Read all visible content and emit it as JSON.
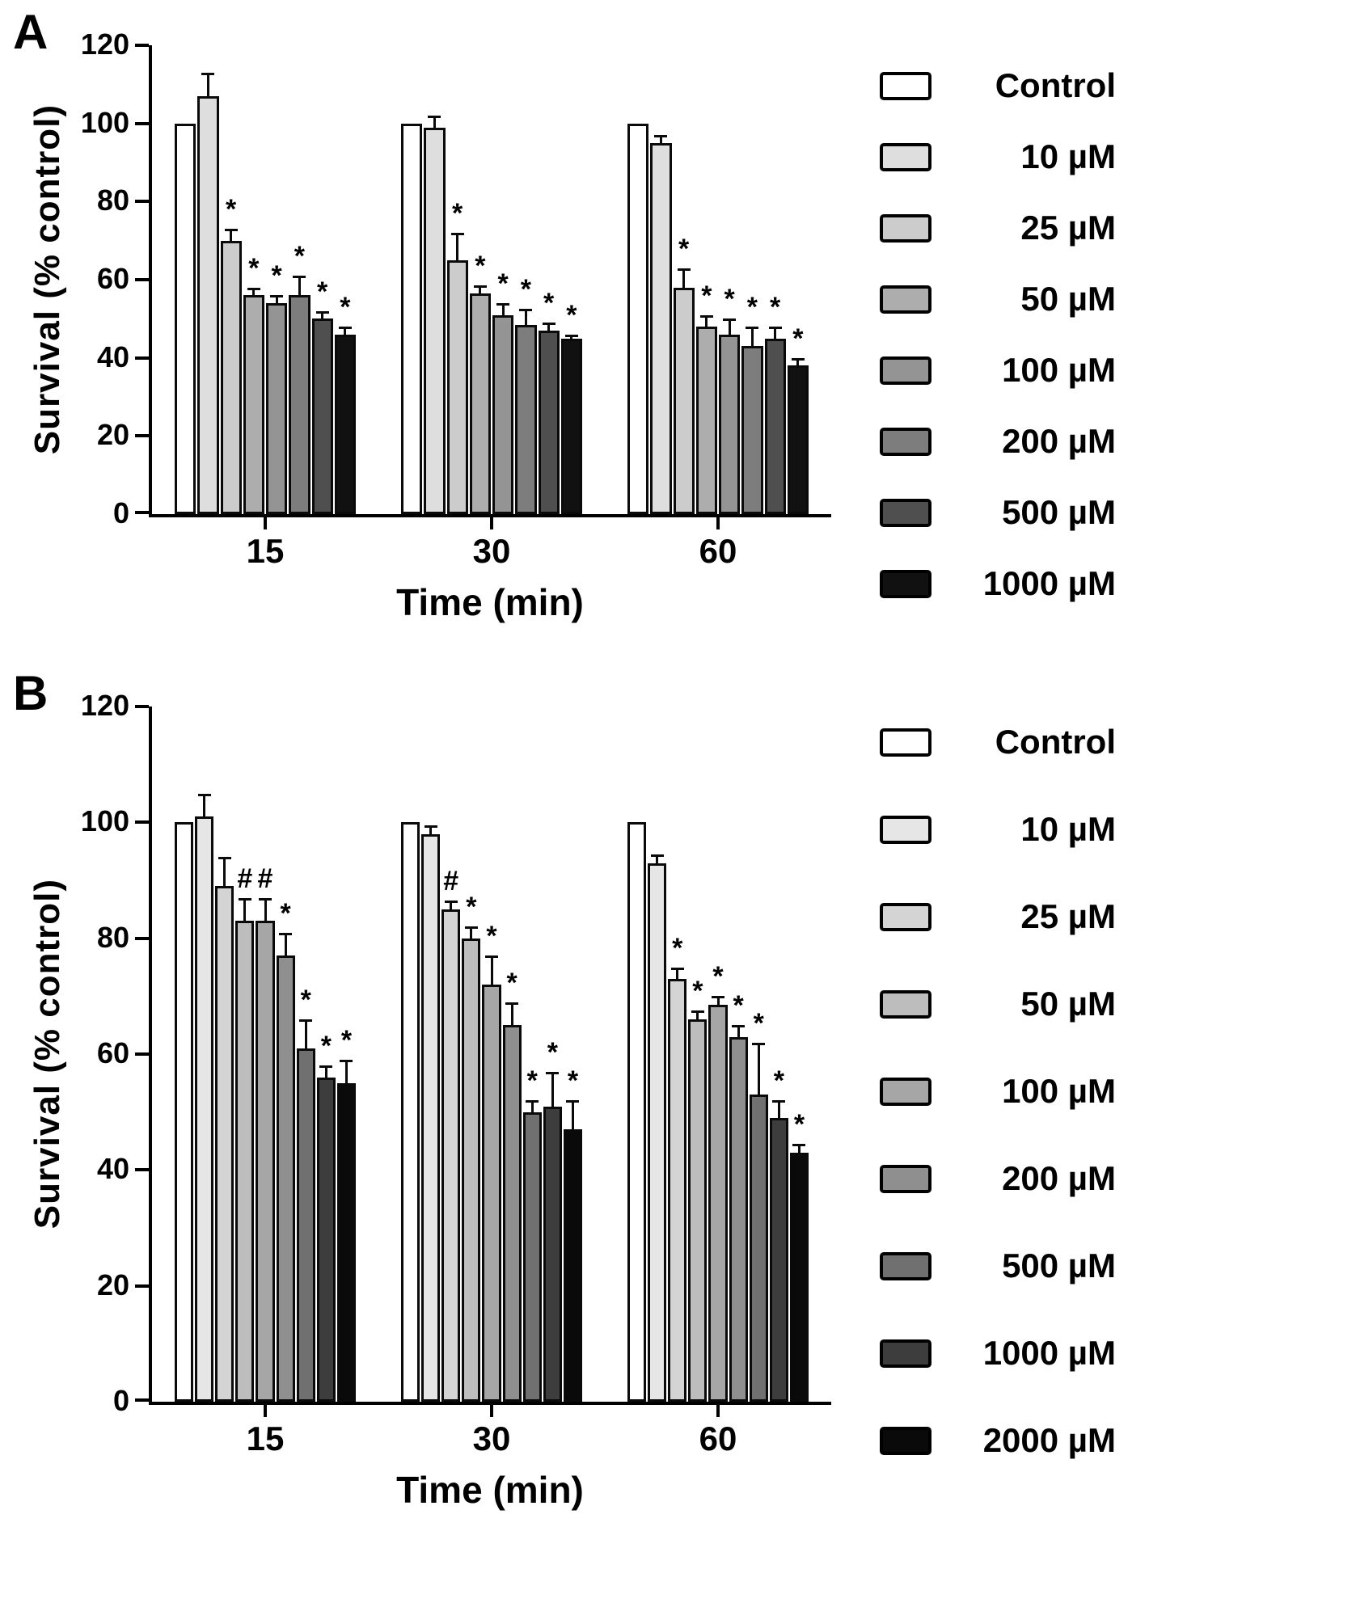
{
  "chart_data": [
    {
      "type": "bar",
      "panel": "A",
      "title": "",
      "xlabel": "Time (min)",
      "ylabel": "Survival (% control)",
      "ylim": [
        0,
        120
      ],
      "yticks": [
        0,
        20,
        40,
        60,
        80,
        100,
        120
      ],
      "categories": [
        "15",
        "30",
        "60"
      ],
      "legend_position": "right",
      "grid": false,
      "error_bars": "upper",
      "series": [
        {
          "name": "Control",
          "color": "#ffffff",
          "values": [
            100,
            100,
            100
          ],
          "errors": [
            0,
            0,
            0
          ],
          "sig": [
            "",
            "",
            ""
          ]
        },
        {
          "name": "10 µM",
          "color": "#dedede",
          "values": [
            107,
            99,
            95
          ],
          "errors": [
            6,
            3,
            2
          ],
          "sig": [
            "",
            "",
            ""
          ]
        },
        {
          "name": "25 µM",
          "color": "#cccccc",
          "values": [
            70,
            65,
            58
          ],
          "errors": [
            3,
            7,
            5
          ],
          "sig": [
            "*",
            "*",
            "*"
          ]
        },
        {
          "name": "50 µM",
          "color": "#adadad",
          "values": [
            56,
            56.5,
            48
          ],
          "errors": [
            2,
            2,
            3
          ],
          "sig": [
            "*",
            "*",
            "*"
          ]
        },
        {
          "name": "100 µM",
          "color": "#949494",
          "values": [
            54,
            51,
            46
          ],
          "errors": [
            2,
            3,
            4
          ],
          "sig": [
            "*",
            "*",
            "*"
          ]
        },
        {
          "name": "200 µM",
          "color": "#7d7d7d",
          "values": [
            56,
            48.5,
            43
          ],
          "errors": [
            5,
            4,
            5
          ],
          "sig": [
            "*",
            "*",
            "*"
          ]
        },
        {
          "name": "500 µM",
          "color": "#4f4f4f",
          "values": [
            50,
            47,
            45
          ],
          "errors": [
            2,
            2,
            3
          ],
          "sig": [
            "*",
            "*",
            "*"
          ]
        },
        {
          "name": "1000 µM",
          "color": "#111111",
          "values": [
            46,
            45,
            38
          ],
          "errors": [
            2,
            1,
            2
          ],
          "sig": [
            "*",
            "*",
            "*"
          ]
        }
      ]
    },
    {
      "type": "bar",
      "panel": "B",
      "title": "",
      "xlabel": "Time (min)",
      "ylabel": "Survival (% control)",
      "ylim": [
        0,
        120
      ],
      "yticks": [
        0,
        20,
        40,
        60,
        80,
        100,
        120
      ],
      "categories": [
        "15",
        "30",
        "60"
      ],
      "legend_position": "right",
      "grid": false,
      "error_bars": "upper",
      "series": [
        {
          "name": "Control",
          "color": "#ffffff",
          "values": [
            100,
            100,
            100
          ],
          "errors": [
            0,
            0,
            0
          ],
          "sig": [
            "",
            "",
            ""
          ]
        },
        {
          "name": "10 µM",
          "color": "#e6e6e6",
          "values": [
            101,
            98,
            93
          ],
          "errors": [
            4,
            1.5,
            1.5
          ],
          "sig": [
            "",
            "",
            ""
          ]
        },
        {
          "name": "25 µM",
          "color": "#d4d4d4",
          "values": [
            89,
            85,
            73
          ],
          "errors": [
            5,
            1.5,
            2
          ],
          "sig": [
            "",
            "#",
            "*"
          ]
        },
        {
          "name": "50 µM",
          "color": "#bdbdbd",
          "values": [
            83,
            80,
            66
          ],
          "errors": [
            4,
            2,
            1.5
          ],
          "sig": [
            "#",
            "*",
            "*"
          ]
        },
        {
          "name": "100 µM",
          "color": "#a6a6a6",
          "values": [
            83,
            72,
            68.5
          ],
          "errors": [
            4,
            5,
            1.5
          ],
          "sig": [
            "#",
            "*",
            "*"
          ]
        },
        {
          "name": "200 µM",
          "color": "#8f8f8f",
          "values": [
            77,
            65,
            63
          ],
          "errors": [
            4,
            4,
            2
          ],
          "sig": [
            "*",
            "*",
            "*"
          ]
        },
        {
          "name": "500 µM",
          "color": "#707070",
          "values": [
            61,
            50,
            53
          ],
          "errors": [
            5,
            2,
            9
          ],
          "sig": [
            "*",
            "*",
            "*"
          ]
        },
        {
          "name": "1000 µM",
          "color": "#3d3d3d",
          "values": [
            56,
            51,
            49
          ],
          "errors": [
            2,
            6,
            3
          ],
          "sig": [
            "*",
            "*",
            "*"
          ]
        },
        {
          "name": "2000 µM",
          "color": "#0a0a0a",
          "values": [
            55,
            47,
            43
          ],
          "errors": [
            4,
            5,
            1.5
          ],
          "sig": [
            "*",
            "*",
            "*"
          ]
        }
      ]
    }
  ]
}
